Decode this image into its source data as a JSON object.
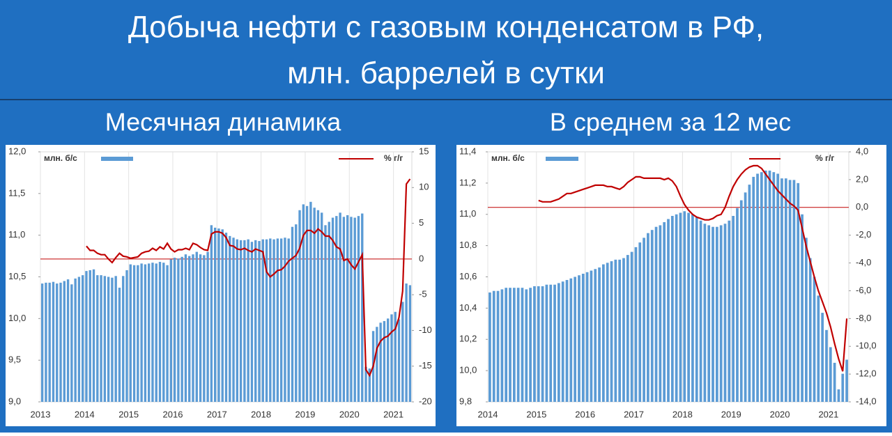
{
  "header": {
    "title": [
      "Добыча нефти с газовым конденсатом в РФ,",
      "млн. баррелей в сутки"
    ]
  },
  "chart_data": [
    {
      "type": "bar_line",
      "subtitle": "Месячная динамика",
      "categories": [
        "2013",
        null,
        null,
        null,
        null,
        null,
        null,
        null,
        null,
        null,
        null,
        null,
        "2014",
        null,
        null,
        null,
        null,
        null,
        null,
        null,
        null,
        null,
        null,
        null,
        "2015",
        null,
        null,
        null,
        null,
        null,
        null,
        null,
        null,
        null,
        null,
        null,
        "2016",
        null,
        null,
        null,
        null,
        null,
        null,
        null,
        null,
        null,
        null,
        null,
        "2017",
        null,
        null,
        null,
        null,
        null,
        null,
        null,
        null,
        null,
        null,
        null,
        "2018",
        null,
        null,
        null,
        null,
        null,
        null,
        null,
        null,
        null,
        null,
        null,
        "2019",
        null,
        null,
        null,
        null,
        null,
        null,
        null,
        null,
        null,
        null,
        null,
        "2020",
        null,
        null,
        null,
        null,
        null,
        null,
        null,
        null,
        null,
        null,
        null,
        "2021",
        null,
        null,
        null,
        null
      ],
      "series": [
        {
          "name": "млн. б/с",
          "color": "#5b9bd5",
          "values": [
            10.42,
            10.43,
            10.43,
            10.44,
            10.42,
            10.43,
            10.45,
            10.47,
            10.41,
            10.48,
            10.5,
            10.52,
            10.57,
            10.58,
            10.59,
            10.52,
            10.52,
            10.51,
            10.5,
            10.49,
            10.51,
            10.37,
            10.51,
            10.58,
            10.65,
            10.64,
            10.64,
            10.66,
            10.65,
            10.66,
            10.67,
            10.66,
            10.68,
            10.67,
            10.64,
            10.71,
            10.73,
            10.72,
            10.74,
            10.77,
            10.75,
            10.77,
            10.8,
            10.77,
            10.76,
            10.8,
            11.12,
            11.09,
            11.08,
            11.07,
            11.03,
            10.99,
            10.97,
            10.95,
            10.94,
            10.94,
            10.95,
            10.92,
            10.94,
            10.93,
            10.95,
            10.95,
            10.96,
            10.95,
            10.96,
            10.96,
            10.97,
            10.96,
            11.1,
            11.13,
            11.3,
            11.37,
            11.35,
            11.4,
            11.33,
            11.3,
            11.27,
            11.12,
            11.16,
            11.21,
            11.23,
            11.27,
            11.22,
            11.24,
            11.22,
            11.21,
            11.23,
            11.26,
            9.42,
            9.4,
            9.85,
            9.9,
            9.95,
            9.97,
            10.0,
            10.05,
            10.08,
            9.99,
            10.2,
            10.42,
            10.4
          ]
        },
        {
          "name": "% г/г",
          "color": "#c00000",
          "axis": "y2",
          "values": [
            null,
            null,
            null,
            null,
            null,
            null,
            null,
            null,
            null,
            null,
            null,
            null,
            1.8,
            1.2,
            1.2,
            0.8,
            0.6,
            0.6,
            0,
            -0.5,
            0.2,
            0.8,
            0.4,
            0.3,
            0.1,
            0.2,
            0.3,
            0.8,
            1.0,
            1.1,
            1.5,
            1.2,
            1.7,
            1.4,
            2.2,
            1.4,
            1.0,
            1.3,
            1.3,
            1.5,
            1.3,
            2.2,
            2.0,
            1.6,
            1.3,
            1.2,
            3.5,
            3.8,
            3.8,
            3.6,
            3.0,
            1.9,
            1.8,
            1.4,
            1.3,
            1.5,
            1.2,
            1.0,
            1.4,
            1.2,
            1.0,
            -1.8,
            -2.5,
            -2.1,
            -1.6,
            -1.5,
            -1.0,
            -0.3,
            0.1,
            0.5,
            1.5,
            3.3,
            4.0,
            4.0,
            3.6,
            4.2,
            3.8,
            3.2,
            3.2,
            2.6,
            1.7,
            1.4,
            -0.2,
            0.0,
            -0.8,
            -1.4,
            -0.4,
            0.6,
            -15.5,
            -16.3,
            -15.0,
            -12.5,
            -11.5,
            -11.0,
            -10.8,
            -10.2,
            -9.8,
            -8.2,
            -4.5,
            10.5,
            11.2
          ]
        }
      ],
      "ylim": [
        9.0,
        12.0
      ],
      "yticks": [
        {
          "value": 9.0,
          "label": "9,0"
        },
        {
          "value": 9.5,
          "label": "9,5"
        },
        {
          "value": 10.0,
          "label": "10,0"
        },
        {
          "value": 10.5,
          "label": "10,5"
        },
        {
          "value": 11.0,
          "label": "11,0"
        },
        {
          "value": 11.5,
          "label": "11,5"
        },
        {
          "value": 12.0,
          "label": "12,0"
        }
      ],
      "y2lim": [
        -20,
        15
      ],
      "y2ticks": [
        -20,
        -15,
        -10,
        -5,
        0,
        5,
        10,
        15
      ]
    },
    {
      "type": "bar_line",
      "subtitle": "В среднем за 12 мес",
      "categories": [
        "2014",
        null,
        null,
        null,
        null,
        null,
        null,
        null,
        null,
        null,
        null,
        null,
        "2015",
        null,
        null,
        null,
        null,
        null,
        null,
        null,
        null,
        null,
        null,
        null,
        "2016",
        null,
        null,
        null,
        null,
        null,
        null,
        null,
        null,
        null,
        null,
        null,
        "2017",
        null,
        null,
        null,
        null,
        null,
        null,
        null,
        null,
        null,
        null,
        null,
        "2018",
        null,
        null,
        null,
        null,
        null,
        null,
        null,
        null,
        null,
        null,
        null,
        "2019",
        null,
        null,
        null,
        null,
        null,
        null,
        null,
        null,
        null,
        null,
        null,
        "2020",
        null,
        null,
        null,
        null,
        null,
        null,
        null,
        null,
        null,
        null,
        null,
        "2021",
        null,
        null,
        null,
        null
      ],
      "series": [
        {
          "name": "млн. б/с",
          "color": "#5b9bd5",
          "values": [
            10.5,
            10.51,
            10.51,
            10.52,
            10.53,
            10.53,
            10.53,
            10.53,
            10.53,
            10.52,
            10.53,
            10.54,
            10.54,
            10.54,
            10.55,
            10.55,
            10.55,
            10.56,
            10.57,
            10.58,
            10.59,
            10.6,
            10.61,
            10.62,
            10.63,
            10.64,
            10.65,
            10.66,
            10.68,
            10.69,
            10.7,
            10.71,
            10.71,
            10.72,
            10.74,
            10.76,
            10.79,
            10.82,
            10.85,
            10.88,
            10.9,
            10.92,
            10.93,
            10.95,
            10.97,
            10.99,
            11.0,
            11.01,
            11.02,
            11.01,
            11.0,
            10.98,
            10.96,
            10.94,
            10.93,
            10.92,
            10.92,
            10.93,
            10.94,
            10.96,
            10.99,
            11.04,
            11.09,
            11.14,
            11.19,
            11.24,
            11.26,
            11.27,
            11.28,
            11.28,
            11.27,
            11.26,
            11.23,
            11.23,
            11.22,
            11.22,
            11.2,
            11.0,
            10.85,
            10.72,
            10.6,
            10.48,
            10.37,
            10.26,
            10.15,
            10.05,
            9.88,
            9.98,
            10.07
          ]
        },
        {
          "name": "% г/г",
          "color": "#c00000",
          "axis": "y2",
          "values": [
            null,
            null,
            null,
            null,
            null,
            null,
            null,
            null,
            null,
            null,
            null,
            null,
            0.5,
            0.4,
            0.4,
            0.4,
            0.5,
            0.6,
            0.8,
            1.0,
            1.0,
            1.1,
            1.2,
            1.3,
            1.4,
            1.5,
            1.6,
            1.6,
            1.6,
            1.5,
            1.5,
            1.4,
            1.3,
            1.5,
            1.8,
            2.0,
            2.2,
            2.2,
            2.1,
            2.1,
            2.1,
            2.1,
            2.1,
            2.0,
            2.1,
            1.9,
            1.5,
            0.8,
            0.2,
            -0.2,
            -0.5,
            -0.7,
            -0.8,
            -0.9,
            -0.9,
            -0.8,
            -0.6,
            -0.5,
            0.0,
            0.8,
            1.5,
            2.0,
            2.4,
            2.7,
            2.9,
            3.0,
            3.0,
            2.8,
            2.4,
            2.0,
            1.6,
            1.2,
            0.9,
            0.6,
            0.3,
            0.1,
            -0.2,
            -1.5,
            -2.8,
            -3.9,
            -5.0,
            -6.0,
            -6.8,
            -7.6,
            -8.6,
            -9.8,
            -10.9,
            -11.8,
            -8.0
          ]
        }
      ],
      "ylim": [
        9.8,
        11.4
      ],
      "yticks": [
        {
          "value": 9.8,
          "label": "9,8"
        },
        {
          "value": 10.0,
          "label": "10,0"
        },
        {
          "value": 10.2,
          "label": "10,2"
        },
        {
          "value": 10.4,
          "label": "10,4"
        },
        {
          "value": 10.6,
          "label": "10,6"
        },
        {
          "value": 10.8,
          "label": "10,8"
        },
        {
          "value": 11.0,
          "label": "11,0"
        },
        {
          "value": 11.2,
          "label": "11,2"
        },
        {
          "value": 11.4,
          "label": "11,4"
        }
      ],
      "y2lim": [
        -14,
        4
      ],
      "y2ticks": [
        {
          "value": -14,
          "label": "-14,0"
        },
        {
          "value": -12,
          "label": "-12,0"
        },
        {
          "value": -10,
          "label": "-10,0"
        },
        {
          "value": -8,
          "label": "-8,0"
        },
        {
          "value": -6,
          "label": "-6,0"
        },
        {
          "value": -4,
          "label": "-4,0"
        },
        {
          "value": -2,
          "label": "-2,0"
        },
        {
          "value": 0,
          "label": "0,0"
        },
        {
          "value": 2,
          "label": "2,0"
        },
        {
          "value": 4,
          "label": "4,0"
        }
      ]
    }
  ]
}
